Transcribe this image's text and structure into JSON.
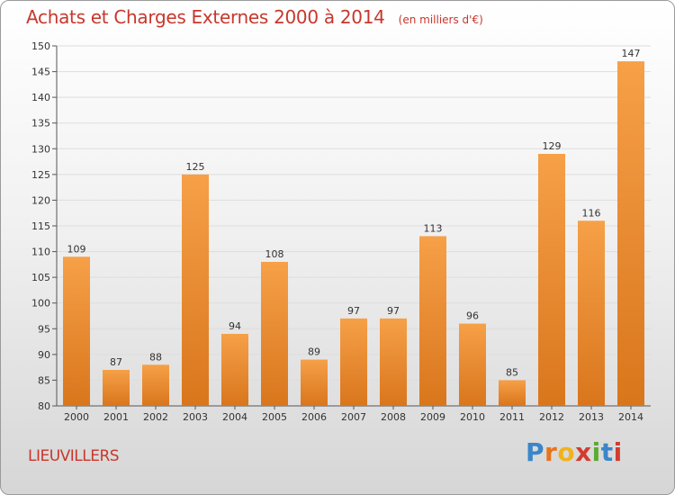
{
  "header": {
    "title": "Achats et Charges Externes 2000 à 2014",
    "unit": "(en milliers d'€)"
  },
  "location": "LIEUVILLERS",
  "brand": {
    "letters": [
      "P",
      "r",
      "o",
      "x",
      "i",
      "t",
      "i"
    ],
    "colors": [
      "#3a86c8",
      "#e8741a",
      "#f0b31c",
      "#d23c2e",
      "#5aab34",
      "#3a86c8",
      "#d23c2e"
    ]
  },
  "colors": {
    "bar_light": "#f6a048",
    "bar_dark": "#d9761c",
    "title": "#c8372c",
    "grid": "#dddddd"
  },
  "chart_data": {
    "type": "bar",
    "categories": [
      "2000",
      "2001",
      "2002",
      "2003",
      "2004",
      "2005",
      "2006",
      "2007",
      "2008",
      "2009",
      "2010",
      "2011",
      "2012",
      "2013",
      "2014"
    ],
    "values": [
      109,
      87,
      88,
      125,
      94,
      108,
      89,
      97,
      97,
      113,
      96,
      85,
      129,
      116,
      147
    ],
    "ylim": [
      80,
      150
    ],
    "yticks": [
      80,
      85,
      90,
      95,
      100,
      105,
      110,
      115,
      120,
      125,
      130,
      135,
      140,
      145,
      150
    ],
    "grid": true,
    "legend": "none"
  }
}
